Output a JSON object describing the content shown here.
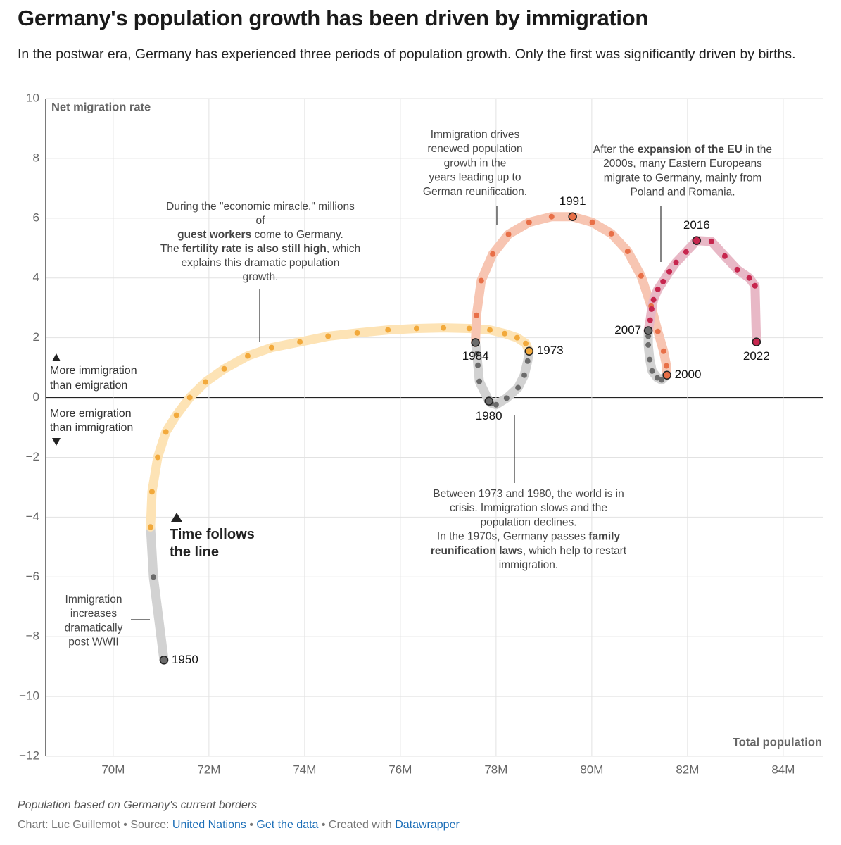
{
  "chart_data": {
    "type": "connected-scatter",
    "title": "Germany's population growth has been driven by immigration",
    "subtitle": "In the postwar era, Germany has experienced three periods of population growth. Only the first was significantly driven by births.",
    "y_axis_title": "Net migration rate",
    "x_axis_title": "Total population",
    "xlim": [
      68.59,
      84.84
    ],
    "ylim": [
      -12,
      10
    ],
    "xticks": [
      {
        "value": 70,
        "label": "70M"
      },
      {
        "value": 72,
        "label": "72M"
      },
      {
        "value": 74,
        "label": "74M"
      },
      {
        "value": 76,
        "label": "76M"
      },
      {
        "value": 78,
        "label": "78M"
      },
      {
        "value": 80,
        "label": "80M"
      },
      {
        "value": 82,
        "label": "82M"
      },
      {
        "value": 84,
        "label": "84M"
      }
    ],
    "yticks": [
      {
        "value": -12,
        "label": "−12"
      },
      {
        "value": -10,
        "label": "−10"
      },
      {
        "value": -8,
        "label": "−8"
      },
      {
        "value": -6,
        "label": "−6"
      },
      {
        "value": -4,
        "label": "−4"
      },
      {
        "value": -2,
        "label": "−2"
      },
      0,
      2,
      4,
      6,
      8,
      10
    ],
    "grid": true,
    "series": [
      {
        "color": "#6b6b6b",
        "line_color": "#d2d2d2",
        "x": [
          71.06,
          70.84,
          70.78
        ],
        "values": [
          -8.78,
          -6.0,
          -4.33
        ],
        "point_labels": [
          "1950",
          null,
          null
        ]
      },
      {
        "color": "#f2a93b",
        "line_color": "#fde3b5",
        "x": [
          70.78,
          70.81,
          70.93,
          71.1,
          71.32,
          71.6,
          71.93,
          72.32,
          72.81,
          73.31,
          73.9,
          74.49,
          75.1,
          75.74,
          76.34,
          76.9,
          77.44,
          77.87,
          78.18,
          78.44,
          78.62,
          78.69
        ],
        "values": [
          -4.33,
          -3.15,
          -2.0,
          -1.15,
          -0.59,
          0.0,
          0.52,
          0.96,
          1.39,
          1.67,
          1.86,
          2.05,
          2.16,
          2.26,
          2.31,
          2.33,
          2.31,
          2.26,
          2.14,
          2.0,
          1.81,
          1.55
        ],
        "point_labels": [
          null,
          null,
          null,
          null,
          null,
          null,
          null,
          null,
          null,
          null,
          null,
          null,
          null,
          null,
          null,
          null,
          null,
          null,
          null,
          null,
          null,
          "1973"
        ]
      },
      {
        "color": "#6b6b6b",
        "line_color": "#d2d2d2",
        "x": [
          78.69,
          78.66,
          78.59,
          78.46,
          78.22,
          78.0,
          77.9,
          77.85,
          77.65,
          77.62,
          77.6,
          77.57
        ],
        "values": [
          1.55,
          1.22,
          0.75,
          0.33,
          -0.02,
          -0.24,
          -0.19,
          -0.12,
          0.54,
          1.08,
          1.46,
          1.84
        ],
        "point_labels": [
          null,
          null,
          null,
          null,
          null,
          null,
          null,
          "1980",
          null,
          null,
          null,
          "1984"
        ]
      },
      {
        "color": "#e86f47",
        "line_color": "#f7c5b2",
        "x": [
          77.57,
          77.59,
          77.69,
          77.93,
          78.26,
          78.69,
          79.16,
          79.6,
          80.01,
          80.41,
          80.75,
          81.03,
          81.24,
          81.38,
          81.5,
          81.56,
          81.57
        ],
        "values": [
          1.84,
          2.75,
          3.91,
          4.8,
          5.46,
          5.86,
          6.05,
          6.05,
          5.86,
          5.48,
          4.89,
          4.07,
          3.06,
          2.21,
          1.55,
          1.06,
          0.75
        ],
        "point_labels": [
          null,
          null,
          null,
          null,
          null,
          null,
          null,
          "1991",
          null,
          null,
          null,
          null,
          null,
          null,
          null,
          null,
          "2000"
        ]
      },
      {
        "color": "#6b6b6b",
        "line_color": "#d2d2d2",
        "x": [
          81.57,
          81.46,
          81.37,
          81.26,
          81.21,
          81.18,
          81.18,
          81.18
        ],
        "values": [
          0.75,
          0.59,
          0.66,
          0.89,
          1.27,
          1.76,
          2.05,
          2.24
        ],
        "point_labels": [
          null,
          null,
          null,
          null,
          null,
          null,
          null,
          "2007"
        ]
      },
      {
        "color": "#c7264e",
        "line_color": "#e8b8c6",
        "x": [
          81.18,
          81.22,
          81.25,
          81.29,
          81.38,
          81.49,
          81.62,
          81.76,
          81.97,
          82.19,
          82.5,
          82.78,
          83.04,
          83.29,
          83.41,
          83.44
        ],
        "values": [
          2.24,
          2.59,
          2.96,
          3.27,
          3.62,
          3.88,
          4.21,
          4.52,
          4.87,
          5.25,
          5.22,
          4.73,
          4.28,
          4.0,
          3.74,
          1.86
        ],
        "point_labels": [
          null,
          null,
          null,
          null,
          null,
          null,
          null,
          null,
          null,
          "2016",
          null,
          null,
          null,
          null,
          null,
          "2022"
        ]
      }
    ],
    "axis_notes": [
      "More immigration",
      "than emigration",
      "More emigration",
      "than immigration"
    ],
    "annotations": [
      {
        "lines": [
          [
            "During the \"economic miracle,\" millions"
          ],
          [
            "of"
          ],
          [
            "guest workers",
            " come to Germany."
          ],
          [
            "The ",
            "fertility rate is also still high",
            ", which"
          ],
          [
            "explains this dramatic population"
          ],
          [
            "growth."
          ]
        ]
      },
      {
        "lines": [
          [
            "Immigration drives"
          ],
          [
            "renewed population"
          ],
          [
            "growth in the"
          ],
          [
            "years leading up to"
          ],
          [
            "German reunification."
          ]
        ]
      },
      {
        "lines": [
          [
            "After the ",
            "expansion of the EU",
            " in the"
          ],
          [
            "2000s, many Eastern Europeans"
          ],
          [
            "migrate to Germany, mainly from"
          ],
          [
            "Poland and Romania."
          ]
        ]
      },
      {
        "lines": [
          [
            "Between 1973 and 1980, the world is in"
          ],
          [
            "crisis. Immigration slows and the"
          ],
          [
            "population declines."
          ],
          [
            "In the 1970s, Germany passes ",
            "family"
          ],
          [
            "reunification laws",
            ", which help to restart"
          ],
          [
            "immigration."
          ]
        ]
      },
      {
        "lines": [
          [
            "Immigration"
          ],
          [
            "increases"
          ],
          [
            "dramatically"
          ],
          [
            "post WWII"
          ]
        ]
      },
      {
        "lines": [
          [
            "Time follows"
          ],
          [
            "the line"
          ]
        ]
      }
    ],
    "note": "Population based on Germany's current borders",
    "credits": [
      "Chart: Luc Guillemot • Source: ",
      "United Nations",
      " • ",
      "Get the data",
      " • Created with ",
      "Datawrapper"
    ]
  }
}
